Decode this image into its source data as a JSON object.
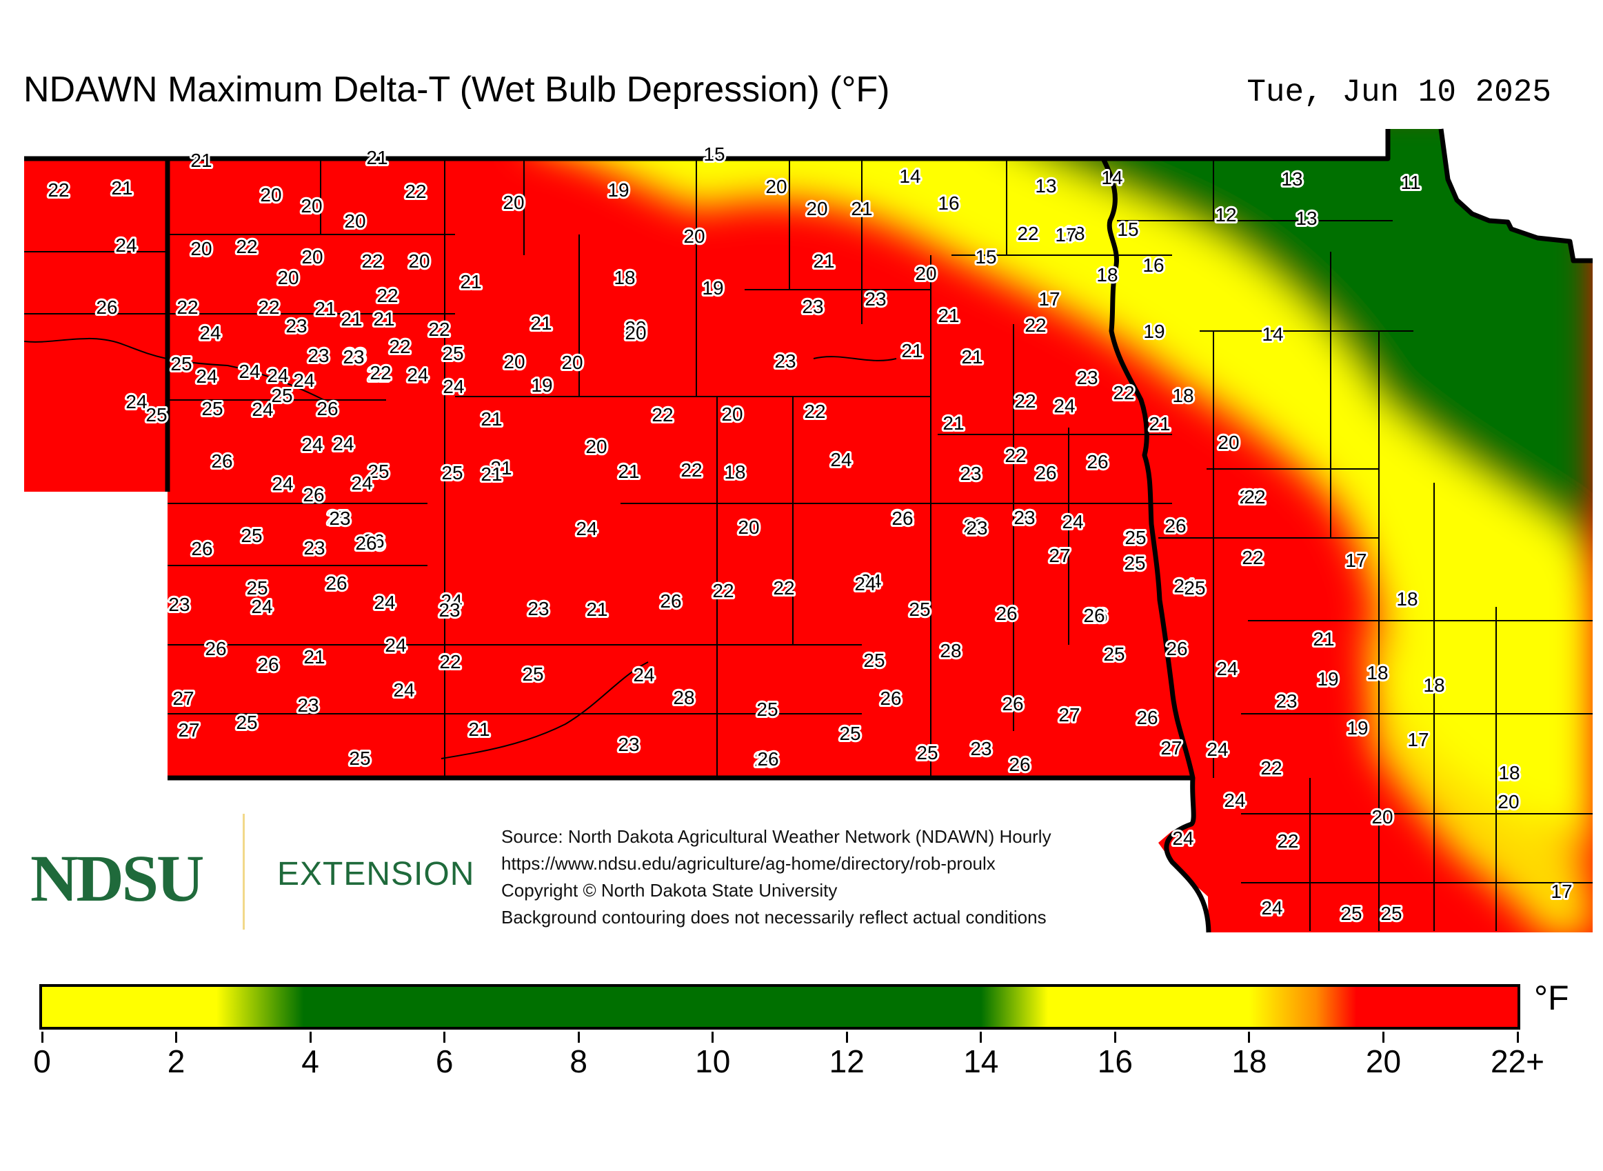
{
  "header": {
    "title": "NDAWN Maximum Delta-T (Wet Bulb Depression) (°F)",
    "date": "Tue, Jun 10 2025"
  },
  "logo": {
    "name": "NDSU",
    "subtitle": "EXTENSION"
  },
  "source_lines": [
    "Source: North Dakota Agricultural Weather Network (NDAWN) Hourly",
    "https://www.ndsu.edu/agriculture/ag-home/directory/rob-proulx",
    "Copyright © North Dakota State University",
    "Background contouring does not necessarily reflect actual conditions"
  ],
  "legend": {
    "unit": "°F",
    "ticks": [
      "0",
      "2",
      "4",
      "6",
      "8",
      "10",
      "12",
      "14",
      "16",
      "18",
      "20",
      "22+"
    ],
    "range": [
      0,
      22
    ],
    "colors": {
      "low_yellow": "#ffff00",
      "green": "#007000",
      "high_yellow": "#ffff00",
      "orange": "#ff8c00",
      "red": "#ff0000"
    },
    "stops": [
      {
        "value": 0,
        "color": "#ffff00"
      },
      {
        "value": 2.6,
        "color": "#ffff00"
      },
      {
        "value": 3.9,
        "color": "#007000"
      },
      {
        "value": 14.0,
        "color": "#007000"
      },
      {
        "value": 15.0,
        "color": "#ffff00"
      },
      {
        "value": 18.0,
        "color": "#ffff00"
      },
      {
        "value": 19.0,
        "color": "#ff8c00"
      },
      {
        "value": 19.6,
        "color": "#ff0000"
      },
      {
        "value": 22,
        "color": "#ff0000"
      }
    ]
  },
  "stations": [
    "22",
    "21",
    "21",
    "21",
    "20",
    "20",
    "20",
    "22",
    "20",
    "19",
    "15",
    "20",
    "14",
    "13",
    "14",
    "13",
    "11",
    "24",
    "20",
    "22",
    "20",
    "22",
    "20",
    "20",
    "16",
    "21",
    "20",
    "22",
    "21",
    "18",
    "17",
    "15",
    "12",
    "13",
    "26",
    "22",
    "22",
    "20",
    "22",
    "21",
    "18",
    "19",
    "20",
    "15",
    "18",
    "16",
    "24",
    "23",
    "23",
    "21",
    "21",
    "21",
    "22",
    "21",
    "20",
    "23",
    "23",
    "21",
    "22",
    "17",
    "19",
    "14",
    "25",
    "23",
    "23",
    "22",
    "20",
    "20",
    "20",
    "23",
    "21",
    "21",
    "24",
    "24",
    "24",
    "24",
    "25",
    "24",
    "22",
    "24",
    "22",
    "19",
    "23",
    "22",
    "18",
    "24",
    "25",
    "25",
    "24",
    "26",
    "25",
    "21",
    "22",
    "20",
    "22",
    "21",
    "22",
    "24",
    "21",
    "20",
    "26",
    "24",
    "24",
    "25",
    "25",
    "21",
    "20",
    "21",
    "22",
    "18",
    "24",
    "23",
    "22",
    "26",
    "24",
    "24",
    "25",
    "26",
    "25",
    "21",
    "26",
    "23",
    "26",
    "22",
    "21",
    "26",
    "25",
    "23",
    "26",
    "23",
    "24",
    "20",
    "26",
    "23",
    "23",
    "24",
    "27",
    "26",
    "22",
    "23",
    "24",
    "26",
    "26",
    "24",
    "26",
    "22",
    "24",
    "25",
    "27",
    "25",
    "17",
    "25",
    "24",
    "24",
    "23",
    "23",
    "21",
    "22",
    "24",
    "25",
    "26",
    "26",
    "22",
    "24",
    "25",
    "18",
    "26",
    "26",
    "26",
    "21",
    "24",
    "22",
    "25",
    "24",
    "28",
    "25",
    "25",
    "26",
    "24",
    "21",
    "19",
    "18",
    "27",
    "24",
    "23",
    "28",
    "26",
    "25",
    "26",
    "27",
    "26",
    "23",
    "18",
    "27",
    "25",
    "21",
    "23",
    "25",
    "26",
    "25",
    "23",
    "26",
    "27",
    "24",
    "19",
    "17",
    "25",
    "26",
    "22",
    "18",
    "24",
    "20",
    "20",
    "24",
    "22",
    "17",
    "24",
    "25",
    "25"
  ]
}
